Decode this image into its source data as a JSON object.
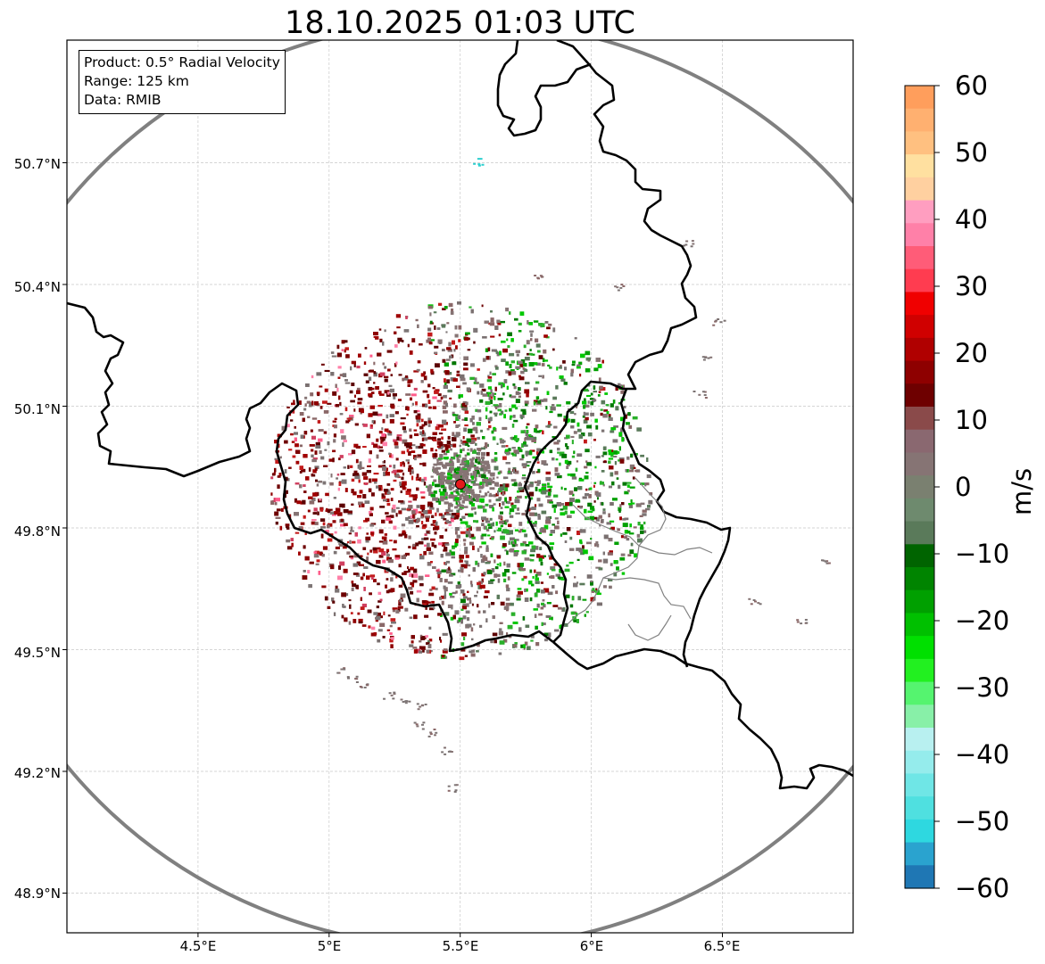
{
  "title": "18.10.2025 01:03 UTC",
  "info_box": {
    "product": "Product: 0.5° Radial Velocity",
    "range": "Range: 125 km",
    "data": "Data: RMIB"
  },
  "map": {
    "lon_range": [
      4.0,
      7.0
    ],
    "lat_range": [
      48.8,
      51.0
    ],
    "radar_site": {
      "lon": 5.5,
      "lat": 49.92
    },
    "range_ring_km": 125,
    "x_ticks": [
      "4.5°E",
      "5°E",
      "5.5°E",
      "6°E",
      "6.5°E"
    ],
    "y_ticks": [
      "50.7°N",
      "50.4°N",
      "50.1°N",
      "49.8°N",
      "49.5°N",
      "49.2°N",
      "48.9°N"
    ],
    "gridlines": true
  },
  "colorbar": {
    "unit": "m/s",
    "min": -60,
    "max": 60,
    "ticks": [
      "60",
      "50",
      "40",
      "30",
      "20",
      "10",
      "0",
      "−10",
      "−20",
      "−30",
      "−40",
      "−50",
      "−60"
    ],
    "colors": [
      "#1f77b4",
      "#2aa3cf",
      "#2ed8e0",
      "#4fe0e0",
      "#6fe6e6",
      "#95ecec",
      "#b8f0f0",
      "#88f0a8",
      "#55f46f",
      "#22f020",
      "#00e000",
      "#00c000",
      "#00a000",
      "#008400",
      "#006400",
      "#5a7a5a",
      "#6e8a6e",
      "#7a8070",
      "#867474",
      "#8a6870",
      "#8a4a4a",
      "#6e0000",
      "#8e0000",
      "#b00000",
      "#d00000",
      "#f00000",
      "#ff3c50",
      "#ff5c78",
      "#ff80a8",
      "#ff9ec0",
      "#ffd0a0",
      "#ffe0a0",
      "#ffc080",
      "#ffb070",
      "#ff9e5c"
    ]
  }
}
